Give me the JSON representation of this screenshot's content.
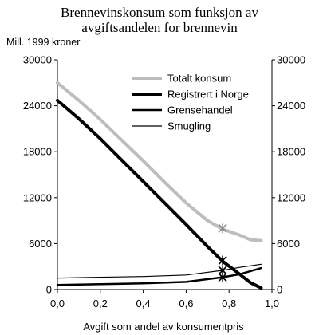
{
  "chart_data": {
    "type": "line",
    "title_line1": "Brennevinskonsum som funksjon av",
    "title_line2": "avgiftsandelen for brennevin",
    "ylabel": "Mill. 1999 kroner",
    "xlabel": "Avgift som andel av konsumentpris",
    "xlim": [
      0,
      1
    ],
    "ylim": [
      0,
      30000
    ],
    "x_ticks": [
      "0,0",
      "0,2",
      "0,4",
      "0,6",
      "0,8",
      "1,0"
    ],
    "y_ticks": [
      "0",
      "6000",
      "12000",
      "18000",
      "24000",
      "30000"
    ],
    "y_ticks_right": [
      "0",
      "6000",
      "12000",
      "18000",
      "24000",
      "30000"
    ],
    "grid": false,
    "legend_position": "top-right",
    "series": [
      {
        "name": "Totalt konsum",
        "color": "#bdbdbd",
        "width": 4,
        "points": [
          [
            0.0,
            27000
          ],
          [
            0.1,
            24700
          ],
          [
            0.2,
            22200
          ],
          [
            0.3,
            19500
          ],
          [
            0.4,
            16800
          ],
          [
            0.5,
            14000
          ],
          [
            0.6,
            11300
          ],
          [
            0.7,
            9000
          ],
          [
            0.77,
            7900
          ],
          [
            0.85,
            7100
          ],
          [
            0.9,
            6500
          ],
          [
            0.95,
            6400
          ]
        ]
      },
      {
        "name": "Registrert i Norge",
        "color": "#000000",
        "width": 4,
        "points": [
          [
            0.0,
            24700
          ],
          [
            0.1,
            22300
          ],
          [
            0.2,
            19700
          ],
          [
            0.3,
            16900
          ],
          [
            0.4,
            14100
          ],
          [
            0.5,
            11300
          ],
          [
            0.6,
            8500
          ],
          [
            0.7,
            5600
          ],
          [
            0.77,
            3700
          ],
          [
            0.85,
            2000
          ],
          [
            0.9,
            900
          ],
          [
            0.95,
            200
          ]
        ]
      },
      {
        "name": "Grensehandel",
        "color": "#000000",
        "width": 2.5,
        "points": [
          [
            0.0,
            600
          ],
          [
            0.2,
            700
          ],
          [
            0.4,
            800
          ],
          [
            0.6,
            1000
          ],
          [
            0.77,
            1600
          ],
          [
            0.85,
            2000
          ],
          [
            0.95,
            2800
          ]
        ]
      },
      {
        "name": "Smugling",
        "color": "#000000",
        "width": 1.2,
        "points": [
          [
            0.0,
            1500
          ],
          [
            0.2,
            1600
          ],
          [
            0.4,
            1700
          ],
          [
            0.6,
            1900
          ],
          [
            0.77,
            2500
          ],
          [
            0.85,
            2900
          ],
          [
            0.95,
            3300
          ]
        ]
      }
    ],
    "markers": [
      {
        "series": "Totalt konsum",
        "x": 0.77,
        "y": 8000,
        "color": "#8c8c8c"
      },
      {
        "series": "Registrert i Norge",
        "x": 0.77,
        "y": 3800,
        "color": "#000000"
      },
      {
        "series": "Smugling",
        "x": 0.77,
        "y": 2500,
        "color": "#000000"
      },
      {
        "series": "Grensehandel",
        "x": 0.77,
        "y": 1600,
        "color": "#000000"
      }
    ]
  }
}
